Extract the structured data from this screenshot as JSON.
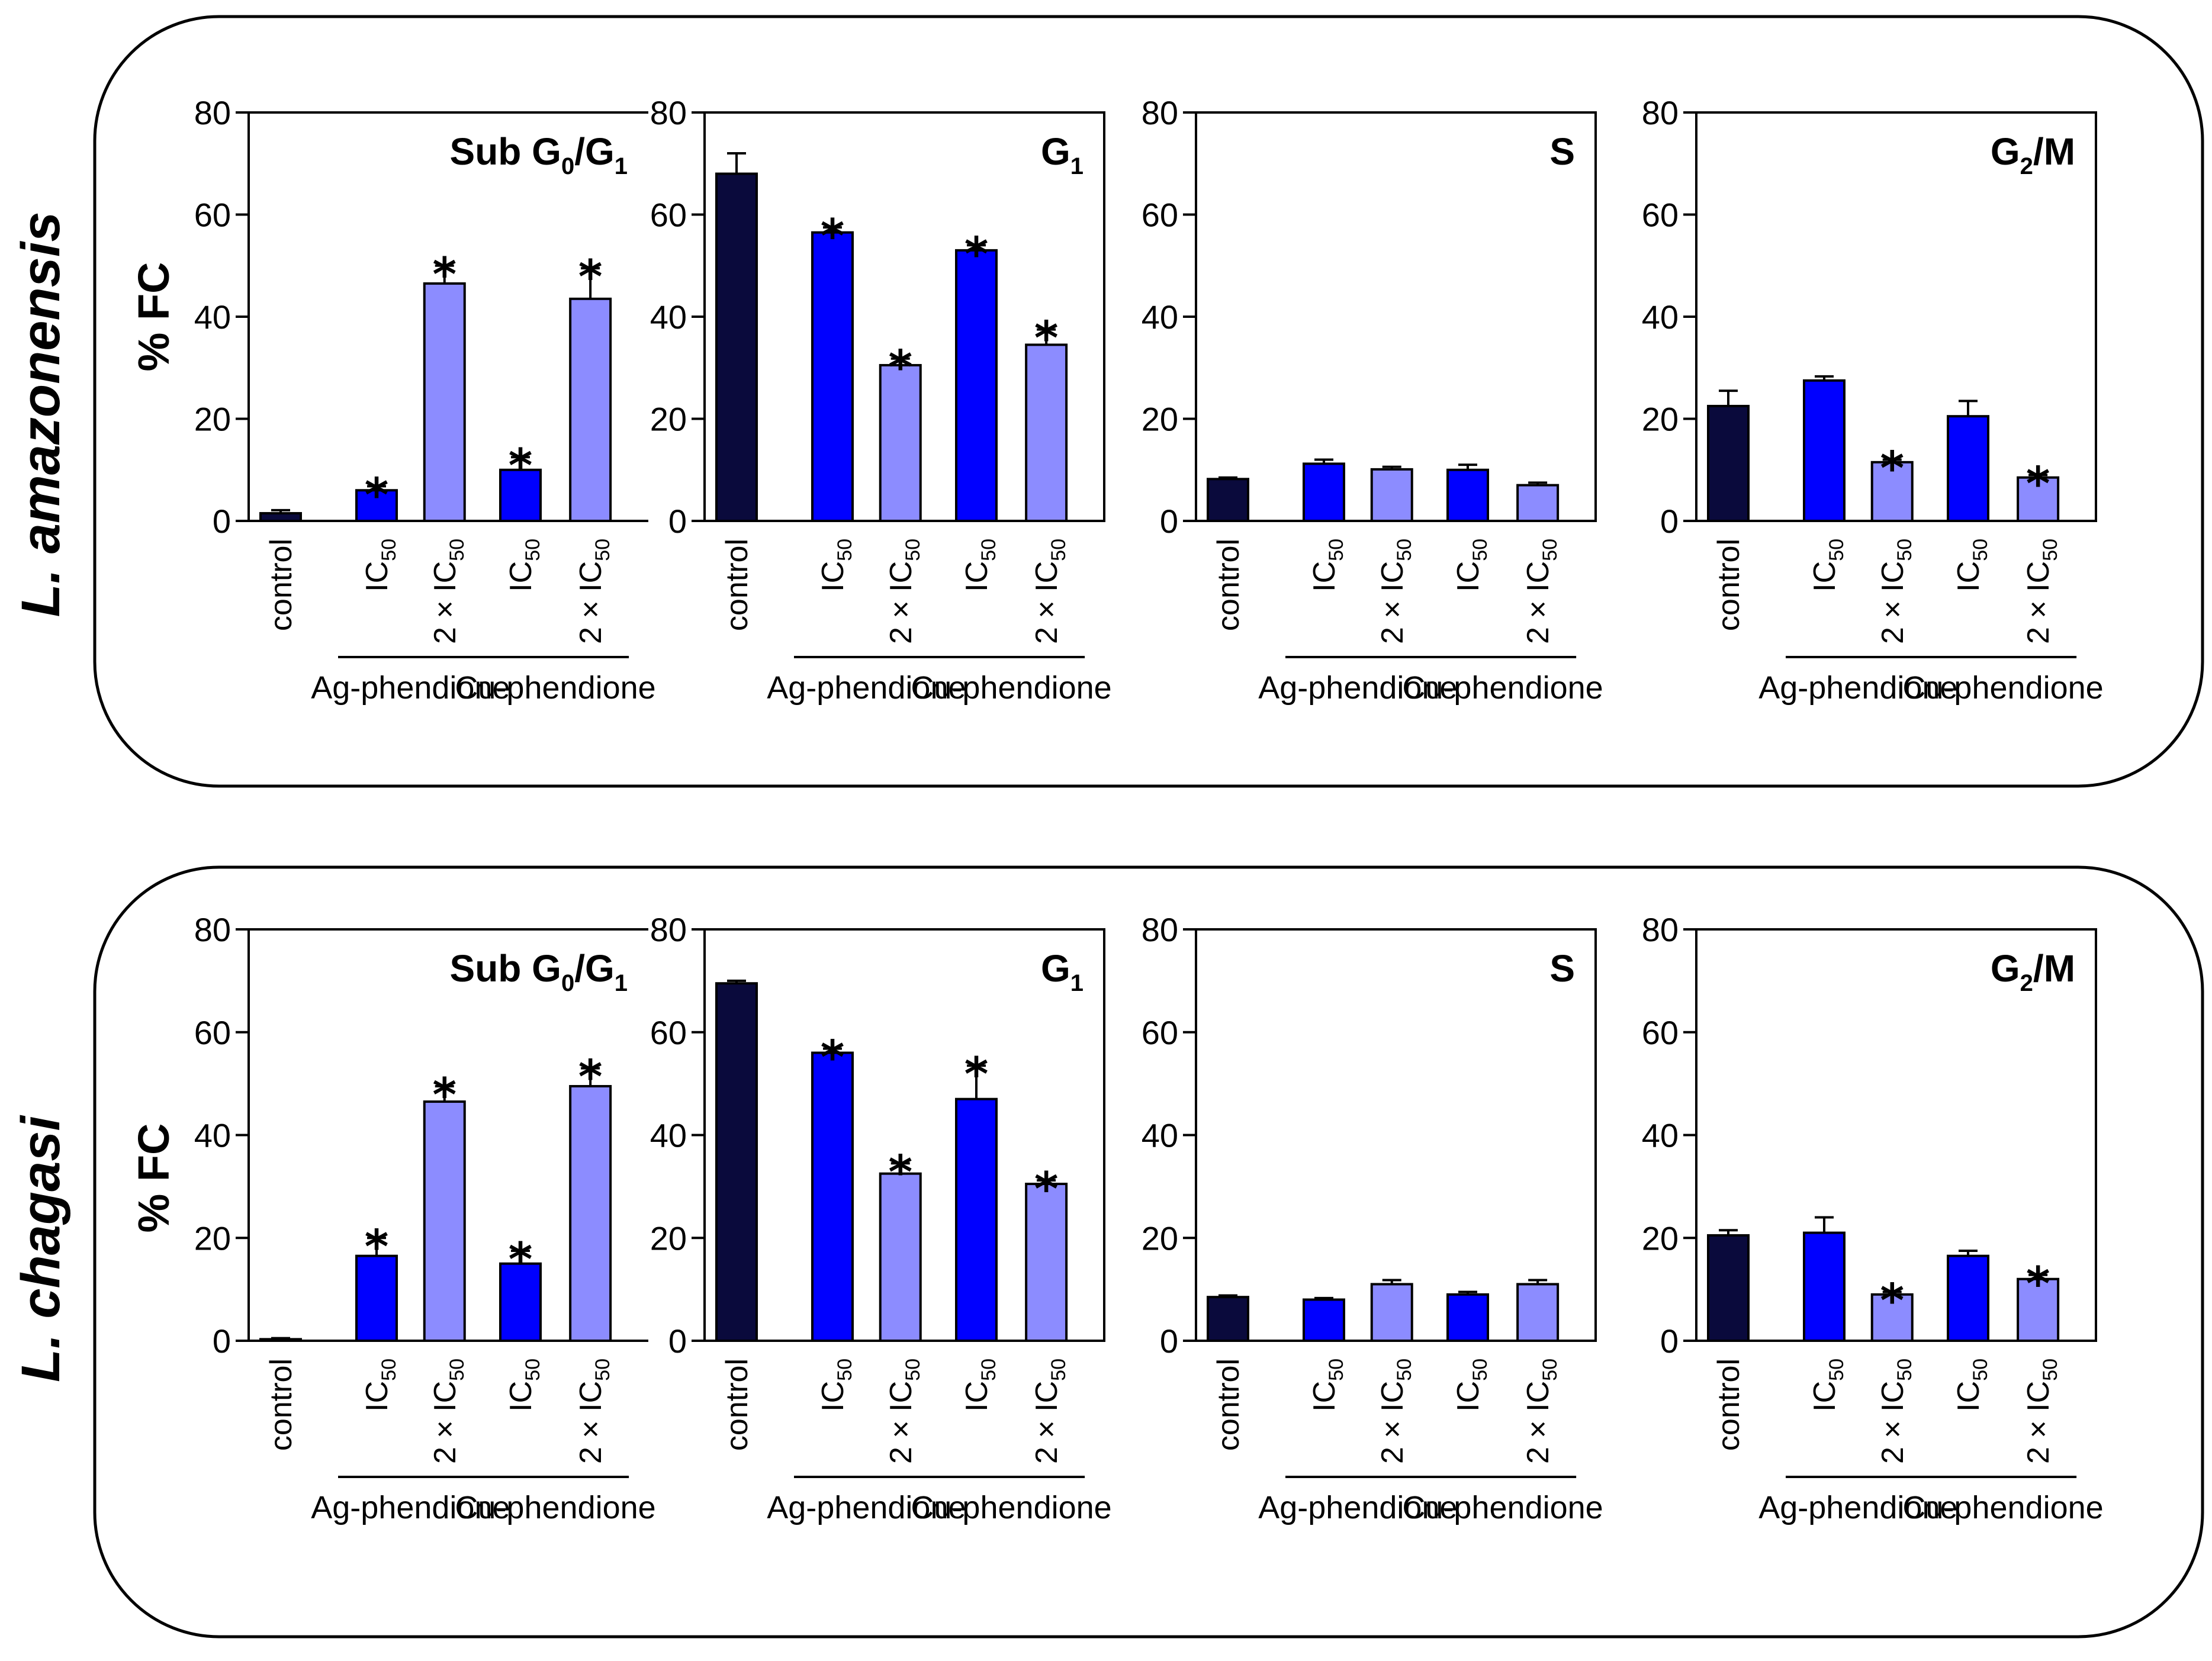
{
  "colors": {
    "control": "#0a0a3c",
    "ic50": "#0000ff",
    "two_ic50": "#8c8cff",
    "axis": "#000000",
    "frame": "#000000"
  },
  "y_label": "% FC",
  "y_ticks": [
    "0",
    "20",
    "40",
    "60",
    "80"
  ],
  "categories": [
    {
      "main": "control",
      "sub": ""
    },
    {
      "main": "IC",
      "sub": "50"
    },
    {
      "main": "2 × IC",
      "sub": "50"
    },
    {
      "main": "IC",
      "sub": "50"
    },
    {
      "main": "2 × IC",
      "sub": "50"
    }
  ],
  "group_labels": [
    "Ag-phendione",
    "Cu-phendione"
  ],
  "panel_titles": [
    {
      "main": "Sub G",
      "sub1": "0",
      "mid": "/G",
      "sub2": "1"
    },
    {
      "main": "G",
      "sub1": "1",
      "mid": "",
      "sub2": ""
    },
    {
      "main": "S",
      "sub1": "",
      "mid": "",
      "sub2": ""
    },
    {
      "main": "G",
      "sub1": "2",
      "mid": "/M",
      "sub2": ""
    }
  ],
  "star_symbol": "*",
  "chart_data": [
    {
      "species": "L. amazonensis",
      "type": "bar",
      "ylabel": "% FC",
      "ylim": [
        0,
        80
      ],
      "categories": [
        "control",
        "IC50 Ag-phendione",
        "2 × IC50 Ag-phendione",
        "IC50 Cu-phendione",
        "2 × IC50 Cu-phendione"
      ],
      "panels": [
        {
          "title": "Sub G0/G1",
          "values": [
            1.5,
            6,
            46.5,
            10,
            43.5
          ],
          "errors": [
            0.6,
            0.8,
            3.5,
            2.5,
            6
          ],
          "significant": [
            false,
            true,
            true,
            true,
            true
          ]
        },
        {
          "title": "G1",
          "values": [
            68,
            56.5,
            30.5,
            53,
            34.5
          ],
          "errors": [
            4,
            1,
            1.3,
            1,
            3
          ],
          "significant": [
            false,
            true,
            true,
            true,
            true
          ]
        },
        {
          "title": "S",
          "values": [
            8.2,
            11.2,
            10.1,
            10,
            7
          ],
          "errors": [
            0.3,
            0.8,
            0.5,
            1,
            0.5
          ],
          "significant": [
            false,
            false,
            false,
            false,
            false
          ]
        },
        {
          "title": "G2/M",
          "values": [
            22.5,
            27.5,
            11.5,
            20.5,
            8.5
          ],
          "errors": [
            3,
            0.8,
            0.5,
            3,
            0.5
          ],
          "significant": [
            false,
            false,
            true,
            false,
            true
          ]
        }
      ]
    },
    {
      "species": "L. chagasi",
      "type": "bar",
      "ylabel": "% FC",
      "ylim": [
        0,
        80
      ],
      "categories": [
        "control",
        "IC50 Ag-phendione",
        "2 × IC50 Ag-phendione",
        "IC50 Cu-phendione",
        "2 × IC50 Cu-phendione"
      ],
      "panels": [
        {
          "title": "Sub G0/G1",
          "values": [
            0.3,
            16.5,
            46.5,
            15,
            49.5
          ],
          "errors": [
            0.2,
            3.5,
            3,
            2.5,
            3.5
          ],
          "significant": [
            false,
            true,
            true,
            true,
            true
          ]
        },
        {
          "title": "G1",
          "values": [
            69.5,
            56,
            32.5,
            47,
            30.5
          ],
          "errors": [
            0.5,
            0.8,
            2,
            6.5,
            0.7
          ],
          "significant": [
            false,
            true,
            true,
            true,
            true
          ]
        },
        {
          "title": "S",
          "values": [
            8.5,
            8,
            11,
            9,
            11
          ],
          "errors": [
            0.3,
            0.3,
            0.8,
            0.5,
            0.8
          ],
          "significant": [
            false,
            false,
            false,
            false,
            false
          ]
        },
        {
          "title": "G2/M",
          "values": [
            20.5,
            21,
            9,
            16.5,
            12
          ],
          "errors": [
            1,
            3,
            0.5,
            1,
            0.8
          ],
          "significant": [
            false,
            false,
            true,
            false,
            true
          ]
        }
      ]
    }
  ]
}
